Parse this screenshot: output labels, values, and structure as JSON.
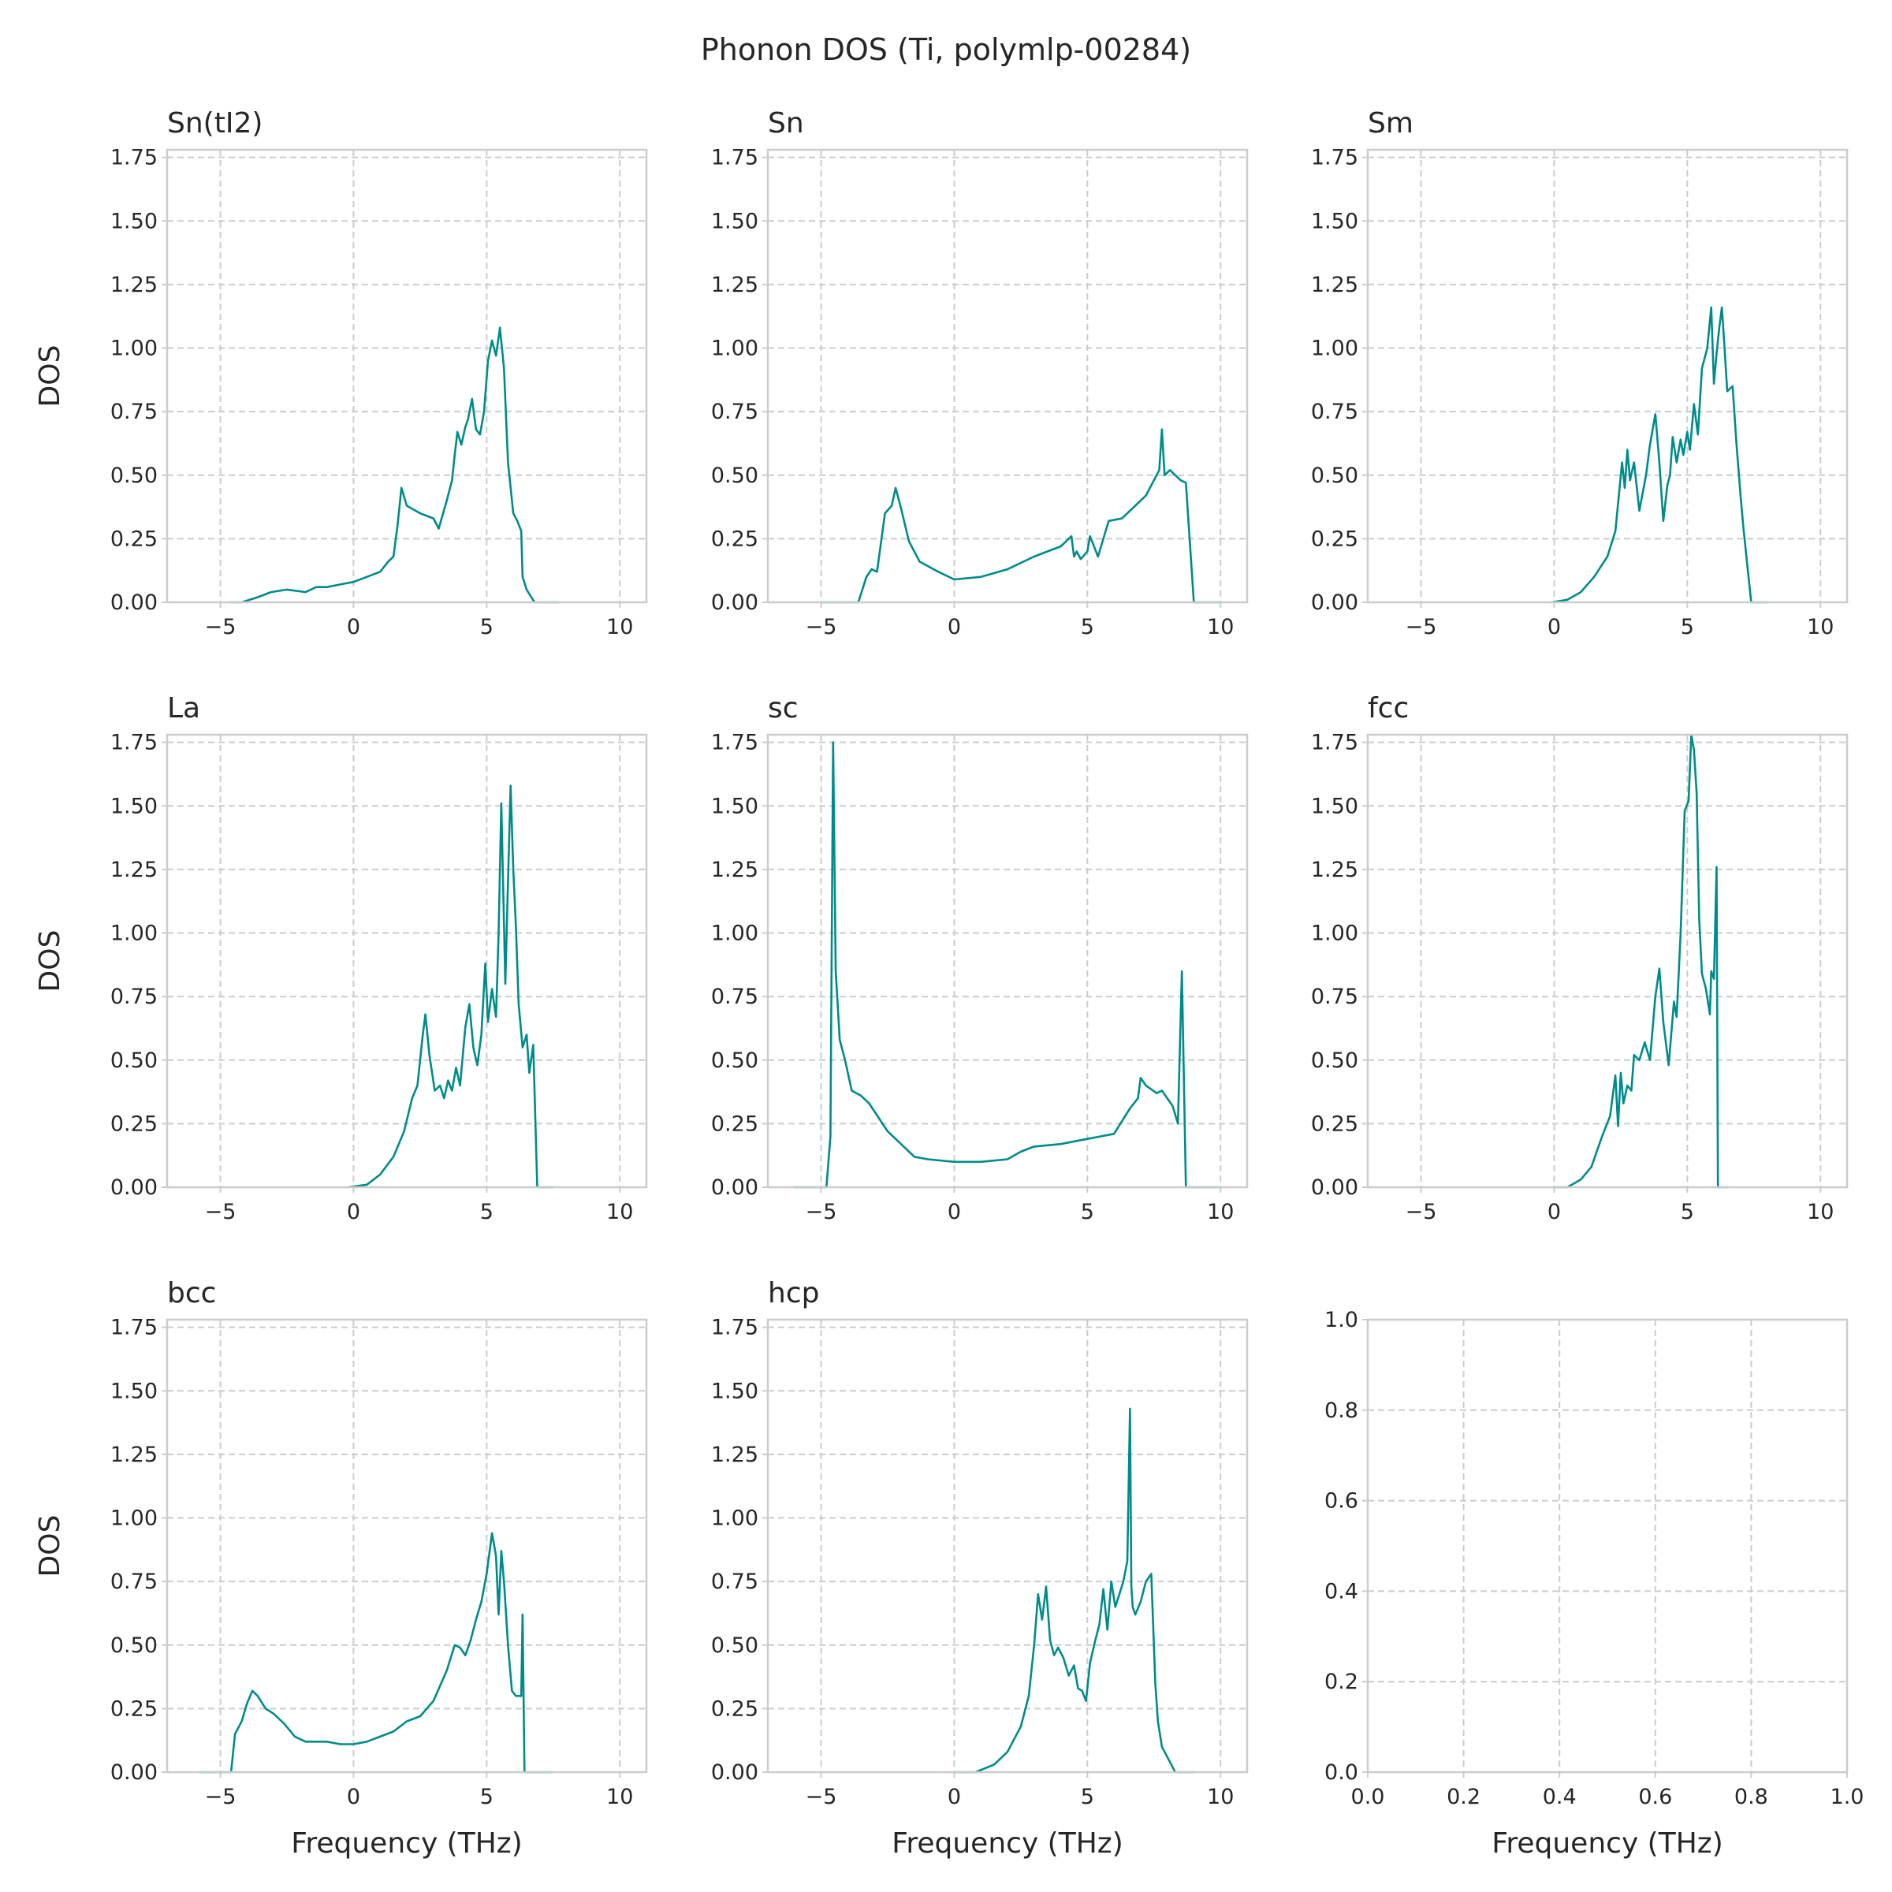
{
  "figure": {
    "title": "Phonon DOS (Ti, polymlp-00284)"
  },
  "style": {
    "line_color": "#008b8b",
    "grid_color": "#cccccc",
    "spine_color": "#cccccc",
    "text_color": "#262626",
    "background": "#ffffff"
  },
  "chart_data": [
    {
      "type": "line",
      "title": "Sn(tI2)",
      "xlabel": "",
      "ylabel": "DOS",
      "xlim": [
        -7,
        11
      ],
      "ylim": [
        0,
        1.78
      ],
      "grid": true,
      "xticks": [
        -5,
        0,
        5,
        10
      ],
      "yticks": [
        0,
        0.25,
        0.5,
        0.75,
        1.0,
        1.25,
        1.5,
        1.75
      ],
      "x": [
        -7.0,
        -5.0,
        -4.6,
        -4.2,
        -3.6,
        -3.1,
        -2.5,
        -1.8,
        -1.4,
        -1.0,
        -0.5,
        0.0,
        0.5,
        1.0,
        1.3,
        1.5,
        1.65,
        1.8,
        2.0,
        2.5,
        3.0,
        3.2,
        3.5,
        3.7,
        3.8,
        3.9,
        4.05,
        4.2,
        4.3,
        4.45,
        4.6,
        4.75,
        4.9,
        5.05,
        5.2,
        5.35,
        5.5,
        5.65,
        5.8,
        6.0,
        6.15,
        6.3,
        6.35,
        6.5,
        6.8,
        7.7,
        11.0
      ],
      "series": [
        {
          "values": [
            null,
            null,
            0.0,
            0.0,
            0.02,
            0.04,
            0.05,
            0.04,
            0.06,
            0.06,
            0.07,
            0.08,
            0.1,
            0.12,
            0.16,
            0.18,
            0.3,
            0.45,
            0.38,
            0.35,
            0.33,
            0.29,
            0.4,
            0.48,
            0.58,
            0.67,
            0.62,
            0.69,
            0.72,
            0.8,
            0.68,
            0.66,
            0.75,
            0.95,
            1.03,
            0.97,
            1.08,
            0.92,
            0.55,
            0.35,
            0.32,
            0.28,
            0.1,
            0.05,
            0.0,
            0.0,
            null
          ]
        }
      ]
    },
    {
      "type": "line",
      "title": "Sn",
      "xlabel": "",
      "ylabel": "",
      "xlim": [
        -7,
        11
      ],
      "ylim": [
        0,
        1.78
      ],
      "grid": true,
      "xticks": [
        -5,
        0,
        5,
        10
      ],
      "yticks": [
        0,
        0.25,
        0.5,
        0.75,
        1.0,
        1.25,
        1.5,
        1.75
      ],
      "x": [
        -7.0,
        -5.0,
        -3.6,
        -3.3,
        -3.1,
        -2.9,
        -2.6,
        -2.35,
        -2.2,
        -2.0,
        -1.7,
        -1.3,
        -0.6,
        0.0,
        1.0,
        2.0,
        3.0,
        3.5,
        4.0,
        4.4,
        4.5,
        4.6,
        4.75,
        5.0,
        5.1,
        5.4,
        5.8,
        6.3,
        6.8,
        7.2,
        7.5,
        7.7,
        7.8,
        7.9,
        8.1,
        8.5,
        8.7,
        9.0,
        10.0,
        11.0
      ],
      "series": [
        {
          "values": [
            null,
            0.0,
            0.0,
            0.1,
            0.13,
            0.12,
            0.35,
            0.38,
            0.45,
            0.37,
            0.24,
            0.16,
            0.12,
            0.09,
            0.1,
            0.13,
            0.18,
            0.2,
            0.22,
            0.26,
            0.18,
            0.2,
            0.17,
            0.2,
            0.26,
            0.18,
            0.32,
            0.33,
            0.38,
            0.42,
            0.48,
            0.52,
            0.68,
            0.5,
            0.52,
            0.48,
            0.47,
            0.0,
            0.0,
            null
          ]
        }
      ]
    },
    {
      "type": "line",
      "title": "Sm",
      "xlabel": "",
      "ylabel": "",
      "xlim": [
        -7,
        11
      ],
      "ylim": [
        0,
        1.78
      ],
      "grid": true,
      "xticks": [
        -5,
        0,
        5,
        10
      ],
      "yticks": [
        0,
        0.25,
        0.5,
        0.75,
        1.0,
        1.25,
        1.5,
        1.75
      ],
      "x": [
        -7.0,
        -0.1,
        0.5,
        1.0,
        1.5,
        2.0,
        2.3,
        2.55,
        2.65,
        2.75,
        2.85,
        3.0,
        3.2,
        3.45,
        3.6,
        3.8,
        3.95,
        4.1,
        4.25,
        4.35,
        4.45,
        4.6,
        4.75,
        4.85,
        5.0,
        5.1,
        5.25,
        5.4,
        5.55,
        5.75,
        5.9,
        6.0,
        6.1,
        6.2,
        6.3,
        6.4,
        6.5,
        6.7,
        6.85,
        7.0,
        7.1,
        7.25,
        7.4,
        8.0,
        11.0
      ],
      "series": [
        {
          "values": [
            null,
            0.0,
            0.01,
            0.04,
            0.1,
            0.18,
            0.28,
            0.55,
            0.45,
            0.6,
            0.48,
            0.55,
            0.36,
            0.5,
            0.62,
            0.74,
            0.55,
            0.32,
            0.46,
            0.5,
            0.65,
            0.55,
            0.64,
            0.58,
            0.67,
            0.6,
            0.78,
            0.66,
            0.92,
            1.0,
            1.16,
            0.86,
            0.98,
            1.08,
            1.16,
            1.0,
            0.83,
            0.85,
            0.62,
            0.42,
            0.3,
            0.15,
            0.0,
            0.0,
            null
          ]
        }
      ]
    },
    {
      "type": "line",
      "title": "La",
      "xlabel": "",
      "ylabel": "DOS",
      "xlim": [
        -7,
        11
      ],
      "ylim": [
        0,
        1.78
      ],
      "grid": true,
      "xticks": [
        -5,
        0,
        5,
        10
      ],
      "yticks": [
        0,
        0.25,
        0.5,
        0.75,
        1.0,
        1.25,
        1.5,
        1.75
      ],
      "x": [
        -7.0,
        -0.2,
        0.5,
        1.0,
        1.5,
        1.9,
        2.2,
        2.4,
        2.6,
        2.7,
        2.85,
        3.05,
        3.25,
        3.4,
        3.55,
        3.7,
        3.85,
        4.0,
        4.2,
        4.35,
        4.5,
        4.65,
        4.8,
        4.95,
        5.05,
        5.2,
        5.35,
        5.45,
        5.55,
        5.7,
        5.8,
        5.9,
        6.0,
        6.1,
        6.2,
        6.35,
        6.5,
        6.6,
        6.75,
        6.9,
        7.5,
        11.0
      ],
      "series": [
        {
          "values": [
            null,
            0.0,
            0.01,
            0.05,
            0.12,
            0.22,
            0.35,
            0.4,
            0.6,
            0.68,
            0.52,
            0.38,
            0.4,
            0.35,
            0.42,
            0.38,
            0.47,
            0.4,
            0.63,
            0.72,
            0.55,
            0.48,
            0.6,
            0.88,
            0.65,
            0.78,
            0.67,
            1.0,
            1.51,
            0.8,
            1.2,
            1.58,
            1.25,
            1.02,
            0.72,
            0.55,
            0.6,
            0.45,
            0.56,
            0.0,
            0.0,
            null
          ]
        }
      ]
    },
    {
      "type": "line",
      "title": "sc",
      "xlabel": "",
      "ylabel": "",
      "xlim": [
        -7,
        11
      ],
      "ylim": [
        0,
        1.78
      ],
      "grid": true,
      "xticks": [
        -5,
        0,
        5,
        10
      ],
      "yticks": [
        0,
        0.25,
        0.5,
        0.75,
        1.0,
        1.25,
        1.5,
        1.75
      ],
      "x": [
        -7.0,
        -6.0,
        -4.8,
        -4.65,
        -4.55,
        -4.45,
        -4.3,
        -4.1,
        -3.85,
        -3.5,
        -3.2,
        -2.5,
        -2.0,
        -1.5,
        -1.0,
        0.0,
        1.0,
        2.0,
        2.5,
        3.0,
        4.0,
        5.0,
        6.0,
        6.3,
        6.6,
        6.9,
        7.0,
        7.2,
        7.6,
        7.8,
        8.2,
        8.4,
        8.55,
        8.7,
        10.0,
        11.0
      ],
      "series": [
        {
          "values": [
            null,
            0.0,
            0.0,
            0.2,
            1.75,
            0.85,
            0.58,
            0.5,
            0.38,
            0.36,
            0.33,
            0.22,
            0.17,
            0.12,
            0.11,
            0.1,
            0.1,
            0.11,
            0.14,
            0.16,
            0.17,
            0.19,
            0.21,
            0.26,
            0.31,
            0.35,
            0.43,
            0.4,
            0.37,
            0.38,
            0.32,
            0.25,
            0.85,
            0.0,
            0.0,
            null
          ]
        }
      ]
    },
    {
      "type": "line",
      "title": "fcc",
      "xlabel": "",
      "ylabel": "",
      "xlim": [
        -7,
        11
      ],
      "ylim": [
        0,
        1.78
      ],
      "grid": true,
      "xticks": [
        -5,
        0,
        5,
        10
      ],
      "yticks": [
        0,
        0.25,
        0.5,
        0.75,
        1.0,
        1.25,
        1.5,
        1.75
      ],
      "x": [
        -7.0,
        0.0,
        0.5,
        1.0,
        1.4,
        1.8,
        2.1,
        2.3,
        2.4,
        2.5,
        2.6,
        2.75,
        2.9,
        3.0,
        3.2,
        3.4,
        3.6,
        3.8,
        3.95,
        4.1,
        4.3,
        4.5,
        4.6,
        4.75,
        4.9,
        5.05,
        5.15,
        5.25,
        5.35,
        5.45,
        5.55,
        5.7,
        5.85,
        5.9,
        6.0,
        6.1,
        6.15,
        6.5,
        7.0,
        11.0
      ],
      "series": [
        {
          "values": [
            null,
            0.0,
            0.0,
            0.03,
            0.08,
            0.2,
            0.28,
            0.44,
            0.24,
            0.45,
            0.33,
            0.4,
            0.38,
            0.52,
            0.5,
            0.57,
            0.5,
            0.75,
            0.86,
            0.65,
            0.48,
            0.73,
            0.67,
            1.0,
            1.48,
            1.52,
            1.78,
            1.72,
            1.55,
            1.05,
            0.84,
            0.78,
            0.68,
            0.85,
            0.82,
            1.26,
            0.0,
            0.0,
            null,
            null
          ]
        }
      ]
    },
    {
      "type": "line",
      "title": "bcc",
      "xlabel": "Frequency (THz)",
      "ylabel": "DOS",
      "xlim": [
        -7,
        11
      ],
      "ylim": [
        0,
        1.78
      ],
      "grid": true,
      "xticks": [
        -5,
        0,
        5,
        10
      ],
      "yticks": [
        0,
        0.25,
        0.5,
        0.75,
        1.0,
        1.25,
        1.5,
        1.75
      ],
      "x": [
        -7.0,
        -5.8,
        -4.6,
        -4.45,
        -4.2,
        -4.0,
        -3.8,
        -3.6,
        -3.3,
        -3.0,
        -2.6,
        -2.2,
        -1.8,
        -1.0,
        -0.5,
        0.0,
        0.5,
        1.0,
        1.5,
        2.0,
        2.5,
        3.0,
        3.5,
        3.8,
        4.0,
        4.2,
        4.4,
        4.6,
        4.8,
        5.0,
        5.2,
        5.35,
        5.45,
        5.55,
        5.65,
        5.8,
        5.95,
        6.1,
        6.3,
        6.35,
        6.42,
        6.5,
        7.5,
        11.0
      ],
      "series": [
        {
          "values": [
            null,
            0.0,
            0.0,
            0.15,
            0.2,
            0.27,
            0.32,
            0.3,
            0.25,
            0.23,
            0.19,
            0.14,
            0.12,
            0.12,
            0.11,
            0.11,
            0.12,
            0.14,
            0.16,
            0.2,
            0.22,
            0.28,
            0.4,
            0.5,
            0.49,
            0.46,
            0.52,
            0.6,
            0.67,
            0.78,
            0.94,
            0.85,
            0.62,
            0.87,
            0.75,
            0.5,
            0.32,
            0.3,
            0.3,
            0.62,
            0.0,
            0.0,
            0.0,
            null
          ]
        }
      ]
    },
    {
      "type": "line",
      "title": "hcp",
      "xlabel": "Frequency (THz)",
      "ylabel": "",
      "xlim": [
        -7,
        11
      ],
      "ylim": [
        0,
        1.78
      ],
      "grid": true,
      "xticks": [
        -5,
        0,
        5,
        10
      ],
      "yticks": [
        0,
        0.25,
        0.5,
        0.75,
        1.0,
        1.25,
        1.5,
        1.75
      ],
      "x": [
        -7.0,
        0.0,
        0.8,
        1.5,
        2.0,
        2.5,
        2.8,
        3.0,
        3.15,
        3.3,
        3.45,
        3.6,
        3.75,
        3.9,
        4.1,
        4.3,
        4.5,
        4.65,
        4.8,
        4.95,
        5.1,
        5.3,
        5.45,
        5.6,
        5.75,
        5.9,
        6.05,
        6.2,
        6.35,
        6.5,
        6.6,
        6.65,
        6.7,
        6.8,
        7.0,
        7.2,
        7.4,
        7.55,
        7.65,
        7.8,
        8.0,
        8.3,
        8.6,
        9.0,
        11.0
      ],
      "series": [
        {
          "values": [
            null,
            0.0,
            0.0,
            0.03,
            0.08,
            0.18,
            0.3,
            0.5,
            0.7,
            0.6,
            0.73,
            0.52,
            0.46,
            0.49,
            0.45,
            0.38,
            0.42,
            0.33,
            0.32,
            0.28,
            0.43,
            0.52,
            0.58,
            0.72,
            0.56,
            0.75,
            0.65,
            0.7,
            0.75,
            0.83,
            1.43,
            0.73,
            0.65,
            0.62,
            0.67,
            0.75,
            0.78,
            0.35,
            0.2,
            0.1,
            0.06,
            0.0,
            0.0,
            0.0,
            null
          ]
        }
      ]
    },
    {
      "type": "line",
      "title": "",
      "xlabel": "Frequency (THz)",
      "ylabel": "",
      "xlim": [
        0,
        1
      ],
      "ylim": [
        0,
        1
      ],
      "grid": true,
      "xticks": [
        0.0,
        0.2,
        0.4,
        0.6,
        0.8,
        1.0
      ],
      "yticks": [
        0.0,
        0.2,
        0.4,
        0.6,
        0.8,
        1.0
      ],
      "x": [],
      "series": []
    }
  ]
}
